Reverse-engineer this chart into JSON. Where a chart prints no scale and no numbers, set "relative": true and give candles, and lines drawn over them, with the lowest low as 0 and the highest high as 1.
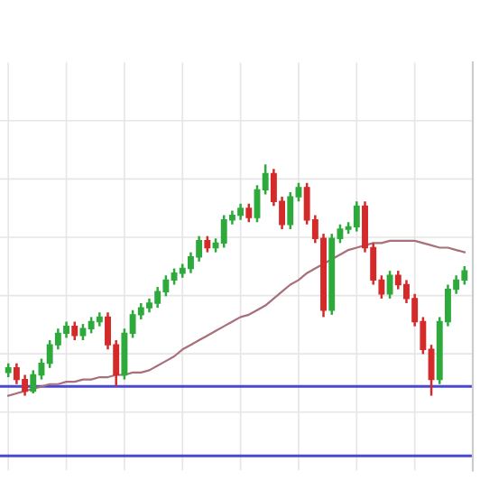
{
  "chart_data": {
    "type": "candlestick",
    "relative": true,
    "grid": true,
    "categories": [
      null,
      null,
      null,
      null,
      null,
      null,
      null,
      null,
      null,
      null,
      null,
      null,
      null,
      null,
      null,
      null,
      null,
      null,
      null,
      null,
      null,
      null,
      null,
      null,
      null,
      null,
      null,
      null,
      null,
      null,
      null,
      null,
      null,
      null,
      null,
      null,
      null,
      null,
      null,
      null,
      null,
      null,
      null,
      null,
      null,
      null,
      null,
      null,
      null,
      null,
      null,
      null,
      null,
      null,
      null,
      null
    ],
    "ohlc": [
      [
        0.1,
        0.14,
        0.08,
        0.12
      ],
      [
        0.12,
        0.14,
        0.05,
        0.07
      ],
      [
        0.07,
        0.09,
        0,
        0.02
      ],
      [
        0.02,
        0.11,
        0.01,
        0.09
      ],
      [
        0.09,
        0.16,
        0.07,
        0.14
      ],
      [
        0.14,
        0.24,
        0.12,
        0.22
      ],
      [
        0.22,
        0.29,
        0.2,
        0.27
      ],
      [
        0.27,
        0.32,
        0.25,
        0.3
      ],
      [
        0.3,
        0.32,
        0.24,
        0.26
      ],
      [
        0.26,
        0.31,
        0.24,
        0.29
      ],
      [
        0.29,
        0.34,
        0.27,
        0.32
      ],
      [
        0.32,
        0.36,
        0.3,
        0.34
      ],
      [
        0.34,
        0.36,
        0.2,
        0.22
      ],
      [
        0.22,
        0.24,
        0.04,
        0.09
      ],
      [
        0.09,
        0.29,
        0.07,
        0.27
      ],
      [
        0.27,
        0.37,
        0.25,
        0.35
      ],
      [
        0.35,
        0.4,
        0.33,
        0.38
      ],
      [
        0.38,
        0.42,
        0.36,
        0.4
      ],
      [
        0.4,
        0.47,
        0.38,
        0.45
      ],
      [
        0.45,
        0.52,
        0.43,
        0.5
      ],
      [
        0.5,
        0.55,
        0.48,
        0.53
      ],
      [
        0.53,
        0.57,
        0.51,
        0.55
      ],
      [
        0.55,
        0.62,
        0.53,
        0.6
      ],
      [
        0.6,
        0.69,
        0.58,
        0.67
      ],
      [
        0.67,
        0.69,
        0.62,
        0.64
      ],
      [
        0.64,
        0.68,
        0.62,
        0.66
      ],
      [
        0.66,
        0.78,
        0.64,
        0.76
      ],
      [
        0.76,
        0.8,
        0.74,
        0.78
      ],
      [
        0.78,
        0.83,
        0.76,
        0.81
      ],
      [
        0.81,
        0.83,
        0.75,
        0.77
      ],
      [
        0.77,
        0.91,
        0.75,
        0.89
      ],
      [
        0.89,
        1,
        0.87,
        0.96
      ],
      [
        0.96,
        0.98,
        0.82,
        0.84
      ],
      [
        0.84,
        0.86,
        0.72,
        0.74
      ],
      [
        0.74,
        0.88,
        0.72,
        0.86
      ],
      [
        0.86,
        0.92,
        0.84,
        0.9
      ],
      [
        0.9,
        0.92,
        0.74,
        0.76
      ],
      [
        0.76,
        0.78,
        0.66,
        0.68
      ],
      [
        0.68,
        0.7,
        0.34,
        0.37
      ],
      [
        0.37,
        0.7,
        0.35,
        0.68
      ],
      [
        0.68,
        0.74,
        0.66,
        0.72
      ],
      [
        0.72,
        0.75,
        0.7,
        0.73
      ],
      [
        0.73,
        0.84,
        0.71,
        0.82
      ],
      [
        0.82,
        0.84,
        0.62,
        0.64
      ],
      [
        0.64,
        0.66,
        0.48,
        0.5
      ],
      [
        0.5,
        0.52,
        0.42,
        0.44
      ],
      [
        0.44,
        0.54,
        0.42,
        0.52
      ],
      [
        0.52,
        0.54,
        0.46,
        0.48
      ],
      [
        0.48,
        0.5,
        0.4,
        0.42
      ],
      [
        0.42,
        0.44,
        0.3,
        0.32
      ],
      [
        0.32,
        0.34,
        0.18,
        0.2
      ],
      [
        0.2,
        0.22,
        0,
        0.07
      ],
      [
        0.07,
        0.34,
        0.05,
        0.32
      ],
      [
        0.32,
        0.48,
        0.3,
        0.46
      ],
      [
        0.46,
        0.52,
        0.44,
        0.5
      ],
      [
        0.5,
        0.56,
        0.48,
        0.54
      ]
    ],
    "colors": [
      "#2eaa3c",
      "#d42a2a",
      "#d42a2a",
      "#2eaa3c",
      "#2eaa3c",
      "#2eaa3c",
      "#2eaa3c",
      "#2eaa3c",
      "#d42a2a",
      "#2eaa3c",
      "#2eaa3c",
      "#2eaa3c",
      "#d42a2a",
      "#d42a2a",
      "#2eaa3c",
      "#2eaa3c",
      "#2eaa3c",
      "#2eaa3c",
      "#2eaa3c",
      "#2eaa3c",
      "#2eaa3c",
      "#2eaa3c",
      "#2eaa3c",
      "#2eaa3c",
      "#d42a2a",
      "#2eaa3c",
      "#2eaa3c",
      "#2eaa3c",
      "#2eaa3c",
      "#d42a2a",
      "#2eaa3c",
      "#2eaa3c",
      "#d42a2a",
      "#d42a2a",
      "#2eaa3c",
      "#2eaa3c",
      "#d42a2a",
      "#d42a2a",
      "#d42a2a",
      "#2eaa3c",
      "#2eaa3c",
      "#2eaa3c",
      "#2eaa3c",
      "#d42a2a",
      "#d42a2a",
      "#d42a2a",
      "#2eaa3c",
      "#d42a2a",
      "#d42a2a",
      "#d42a2a",
      "#d42a2a",
      "#d42a2a",
      "#2eaa3c",
      "#2eaa3c",
      "#2eaa3c",
      "#2eaa3c"
    ],
    "series": [
      {
        "type": "line",
        "color": "#a8707a",
        "values": [
          0.0,
          0.01,
          0.02,
          0.03,
          0.04,
          0.05,
          0.05,
          0.06,
          0.06,
          0.07,
          0.07,
          0.08,
          0.08,
          0.09,
          0.09,
          0.1,
          0.1,
          0.11,
          0.13,
          0.15,
          0.17,
          0.2,
          0.22,
          0.24,
          0.26,
          0.28,
          0.3,
          0.32,
          0.34,
          0.35,
          0.37,
          0.39,
          0.42,
          0.45,
          0.48,
          0.5,
          0.53,
          0.55,
          0.57,
          0.59,
          0.61,
          0.63,
          0.64,
          0.65,
          0.66,
          0.66,
          0.67,
          0.67,
          0.67,
          0.67,
          0.66,
          0.65,
          0.64,
          0.64,
          0.63,
          0.62
        ]
      }
    ],
    "ref_lines": [
      {
        "axis": "y",
        "value": 0.04,
        "color": "#4a4ad0"
      },
      {
        "axis": "y",
        "value": -0.26,
        "color": "#4a4ad0"
      }
    ]
  }
}
